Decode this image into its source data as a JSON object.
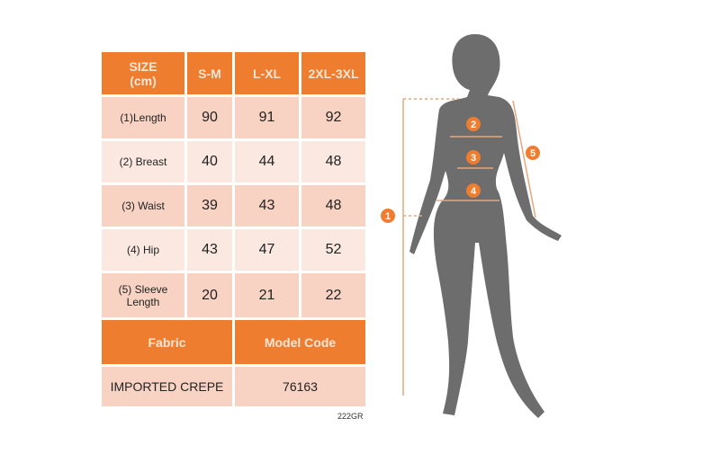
{
  "table": {
    "header": [
      "SIZE\n(cm)",
      "S-M",
      "L-XL",
      "2XL-3XL"
    ],
    "header_title": "SIZE",
    "header_unit": "(cm)",
    "rows": [
      {
        "label": "(1)Length",
        "values": [
          "90",
          "91",
          "92"
        ]
      },
      {
        "label": "(2) Breast",
        "values": [
          "40",
          "44",
          "48"
        ]
      },
      {
        "label": "(3) Waist",
        "values": [
          "39",
          "43",
          "48"
        ]
      },
      {
        "label": "(4) Hip",
        "values": [
          "43",
          "47",
          "52"
        ]
      },
      {
        "label": "(5) Sleeve Length",
        "values": [
          "20",
          "21",
          "22"
        ]
      }
    ],
    "fabric_label": "Fabric",
    "model_code_label": "Model Code",
    "fabric_value": "IMPORTED CREPE",
    "model_code_value": "76163"
  },
  "caption": "222GR",
  "figure": {
    "markers": [
      "1",
      "2",
      "3",
      "4",
      "5"
    ]
  },
  "colors": {
    "accent": "#ef7d2f",
    "row_dark": "#f8d3c3",
    "row_light": "#fbe8e1",
    "silhouette": "#6d6d6d"
  }
}
